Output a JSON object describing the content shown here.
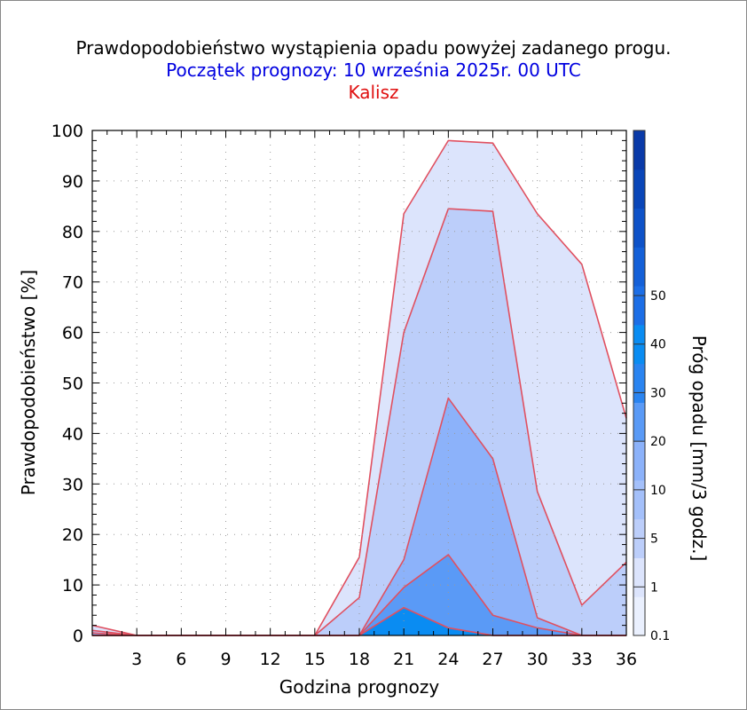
{
  "titles": {
    "line1": "Prawdopodobieństwo wystąpienia opadu powyżej zadanego progu.",
    "line2": "Początek prognozy: 10 września 2025r. 00 UTC",
    "line3": "Kalisz",
    "line1_color": "#000000",
    "line2_color": "#0000e0",
    "line3_color": "#e01010"
  },
  "chart_data": {
    "type": "area",
    "xlabel": "Godzina prognozy",
    "ylabel": "Prawdopodobieństwo [%]",
    "colorbar_label": "Próg opadu [mm/3 godz.]",
    "x": [
      0,
      3,
      6,
      9,
      12,
      15,
      18,
      21,
      24,
      27,
      30,
      33,
      36
    ],
    "xlim": [
      0,
      36
    ],
    "ylim": [
      0,
      100
    ],
    "x_ticks": [
      "3",
      "6",
      "9",
      "12",
      "15",
      "18",
      "21",
      "24",
      "27",
      "30",
      "33",
      "36"
    ],
    "y_ticks": [
      "0",
      "10",
      "20",
      "30",
      "40",
      "50",
      "60",
      "70",
      "80",
      "90",
      "100"
    ],
    "grid": "dotted",
    "outline_color": "#e05060",
    "series": [
      {
        "threshold": "0.1",
        "color": "#dce4fc",
        "values": [
          2,
          0,
          0,
          0,
          0,
          0,
          15.5,
          83.5,
          98,
          97.5,
          83.5,
          73.5,
          43
        ]
      },
      {
        "threshold": "1",
        "color": "#bccefa",
        "values": [
          1,
          0,
          0,
          0,
          0,
          0,
          7.5,
          60,
          84.5,
          84,
          28.5,
          6,
          14.5
        ]
      },
      {
        "threshold": "5",
        "color": "#8cb2fa",
        "values": [
          0.5,
          0,
          0,
          0,
          0,
          0,
          0,
          15,
          47,
          35,
          3.5,
          0,
          0
        ]
      },
      {
        "threshold": "10",
        "color": "#5a9af6",
        "values": [
          0,
          0,
          0,
          0,
          0,
          0,
          0,
          9.5,
          16,
          4,
          1.5,
          0,
          0
        ]
      },
      {
        "threshold": "20",
        "color": "#2a84f0",
        "values": [
          0,
          0,
          0,
          0,
          0,
          0,
          0,
          5.5,
          1.5,
          0,
          0,
          0,
          0
        ]
      },
      {
        "threshold": "30",
        "color": "#0a8cf2",
        "values": [
          0,
          0,
          0,
          0,
          0,
          0,
          0,
          5.5,
          1.5,
          0,
          0,
          0,
          0
        ]
      }
    ],
    "colorbar": {
      "labels": [
        "0.1",
        "1",
        "5",
        "10",
        "20",
        "30",
        "40",
        "50"
      ],
      "colors": [
        "#eaf0fe",
        "#dce4fc",
        "#bccefa",
        "#a4c0fa",
        "#8cb2fa",
        "#5a9af6",
        "#2a84f0",
        "#0a8cf2",
        "#1c6ee6",
        "#1460d8",
        "#0e52c8",
        "#0a46b8",
        "#0a3aa8"
      ]
    }
  }
}
